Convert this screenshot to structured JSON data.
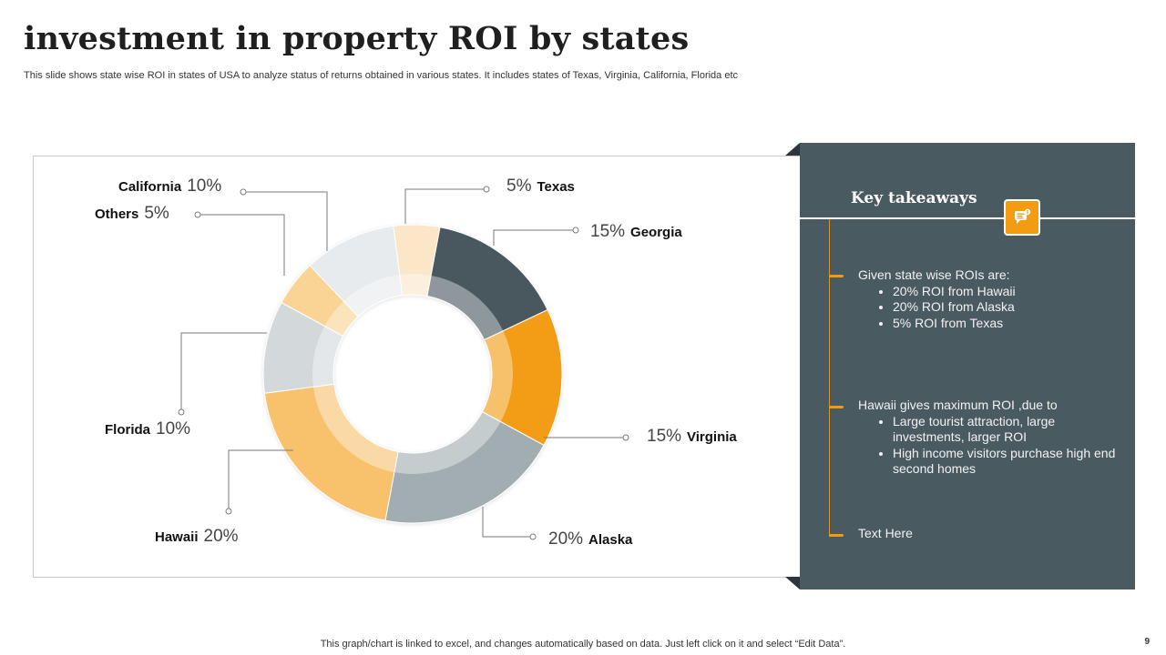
{
  "slide": {
    "title": "investment in property ROI by states",
    "subtitle": "This slide shows state wise ROI in states of USA to analyze  status of returns obtained in various states. It includes states of Texas, Virginia, California, Florida etc",
    "footer": "This graph/chart is linked to excel,  and changes automatically based on data. Just left click on it and select “Edit Data”.",
    "page_number": "9"
  },
  "chart_data": {
    "type": "pie",
    "variant": "donut",
    "title": "",
    "categories": [
      "Texas",
      "Georgia",
      "Virginia",
      "Alaska",
      "Hawaii",
      "Florida",
      "Others",
      "California"
    ],
    "values": [
      5,
      15,
      15,
      20,
      20,
      10,
      5,
      10
    ],
    "labels": [
      "5%",
      "15%",
      "15%",
      "20%",
      "20%",
      "10%",
      "5%",
      "10%"
    ],
    "colors": [
      "#fbe6c8",
      "#48585f",
      "#f39c12",
      "#a2adb1",
      "#f8c26d",
      "#d3d8db",
      "#f9d494",
      "#e8ebed"
    ]
  },
  "takeaways": {
    "heading": "Key takeaways",
    "badge_icon": "chat-bubble-icon",
    "items": [
      {
        "text": "Given state wise ROIs are:",
        "bullets": [
          "20% ROI from Hawaii",
          "20% ROI from Alaska",
          "5% ROI from Texas"
        ]
      },
      {
        "text": "Hawaii  gives maximum ROI ,due to",
        "bullets": [
          "Large tourist attraction, large investments, larger ROI",
          "High income visitors purchase  high end second homes"
        ]
      },
      {
        "text": "Text Here",
        "bullets": []
      }
    ]
  }
}
